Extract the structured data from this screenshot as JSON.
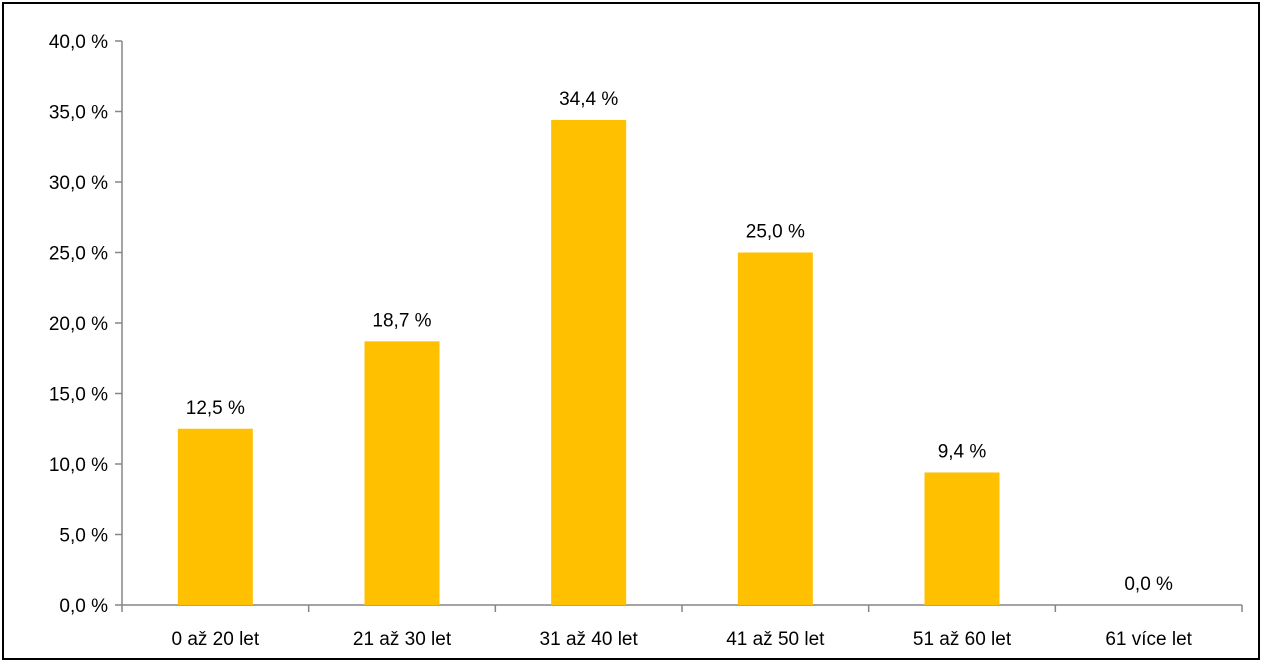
{
  "chart_data": {
    "type": "bar",
    "categories": [
      "0 až 20 let",
      "21 až 30 let",
      "31 až 40 let",
      "41 až 50 let",
      "51 až 60 let",
      "61 více let"
    ],
    "values": [
      12.5,
      18.7,
      34.4,
      25.0,
      9.4,
      0.0
    ],
    "value_labels": [
      "12,5 %",
      "18,7 %",
      "34,4 %",
      "25,0 %",
      "9,4 %",
      "0,0 %"
    ],
    "y_ticks": [
      0,
      5,
      10,
      15,
      20,
      25,
      30,
      35,
      40
    ],
    "y_tick_labels": [
      "0,0 %",
      "5,0 %",
      "10,0 %",
      "15,0 %",
      "20,0 %",
      "25,0 %",
      "30,0 %",
      "35,0 %",
      "40,0 %"
    ],
    "ylim": [
      0,
      40
    ],
    "title": "",
    "xlabel": "",
    "ylabel": "",
    "grid": false,
    "legend": "none",
    "bar_color": "#FFC000",
    "axis_color": "#868686"
  }
}
